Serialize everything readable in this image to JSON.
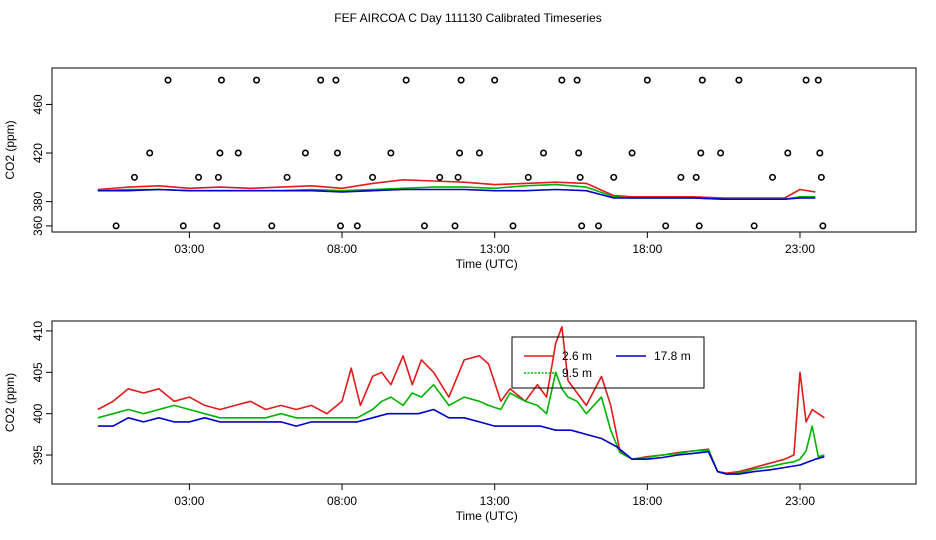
{
  "title": "FEF AIRCOA C  Day 111130  Calibrated Timeseries",
  "colors": {
    "red": "#e31a1c",
    "green": "#00b400",
    "blue": "#0000cc",
    "points": "#000000"
  },
  "chart_data": [
    {
      "type": "scatter+line",
      "name": "top-panel",
      "xlabel": "Time (UTC)",
      "ylabel": "CO2 (ppm)",
      "xlim": [
        -1.5,
        26.8
      ],
      "ylim": [
        355,
        490
      ],
      "xticks": [
        3,
        8,
        13,
        18,
        23
      ],
      "xtick_labels": [
        "03:00",
        "08:00",
        "13:00",
        "18:00",
        "23:00"
      ],
      "yticks": [
        360,
        380,
        420,
        460
      ],
      "ytick_labels": [
        "360",
        "380",
        "420",
        "460"
      ],
      "points": [
        {
          "x": 0.6,
          "y": 360
        },
        {
          "x": 1.2,
          "y": 400
        },
        {
          "x": 1.7,
          "y": 420
        },
        {
          "x": 2.3,
          "y": 480
        },
        {
          "x": 2.8,
          "y": 360
        },
        {
          "x": 3.3,
          "y": 400
        },
        {
          "x": 3.9,
          "y": 360
        },
        {
          "x": 3.95,
          "y": 400
        },
        {
          "x": 4.0,
          "y": 420
        },
        {
          "x": 4.05,
          "y": 480
        },
        {
          "x": 4.6,
          "y": 420
        },
        {
          "x": 5.2,
          "y": 480
        },
        {
          "x": 5.7,
          "y": 360
        },
        {
          "x": 6.2,
          "y": 400
        },
        {
          "x": 6.8,
          "y": 420
        },
        {
          "x": 7.3,
          "y": 480
        },
        {
          "x": 7.8,
          "y": 480
        },
        {
          "x": 7.85,
          "y": 420
        },
        {
          "x": 7.9,
          "y": 400
        },
        {
          "x": 7.95,
          "y": 360
        },
        {
          "x": 8.5,
          "y": 360
        },
        {
          "x": 9.0,
          "y": 400
        },
        {
          "x": 9.6,
          "y": 420
        },
        {
          "x": 10.1,
          "y": 480
        },
        {
          "x": 10.7,
          "y": 360
        },
        {
          "x": 11.2,
          "y": 400
        },
        {
          "x": 11.7,
          "y": 360
        },
        {
          "x": 11.8,
          "y": 400
        },
        {
          "x": 11.85,
          "y": 420
        },
        {
          "x": 11.9,
          "y": 480
        },
        {
          "x": 12.5,
          "y": 420
        },
        {
          "x": 13.0,
          "y": 480
        },
        {
          "x": 13.6,
          "y": 360
        },
        {
          "x": 14.1,
          "y": 400
        },
        {
          "x": 14.6,
          "y": 420
        },
        {
          "x": 15.2,
          "y": 480
        },
        {
          "x": 15.7,
          "y": 480
        },
        {
          "x": 15.75,
          "y": 420
        },
        {
          "x": 15.8,
          "y": 400
        },
        {
          "x": 15.85,
          "y": 360
        },
        {
          "x": 16.4,
          "y": 360
        },
        {
          "x": 16.9,
          "y": 400
        },
        {
          "x": 17.5,
          "y": 420
        },
        {
          "x": 18.0,
          "y": 480
        },
        {
          "x": 18.6,
          "y": 360
        },
        {
          "x": 19.1,
          "y": 400
        },
        {
          "x": 19.6,
          "y": 400
        },
        {
          "x": 19.7,
          "y": 360
        },
        {
          "x": 19.75,
          "y": 420
        },
        {
          "x": 19.8,
          "y": 480
        },
        {
          "x": 20.4,
          "y": 420
        },
        {
          "x": 21.0,
          "y": 480
        },
        {
          "x": 21.5,
          "y": 360
        },
        {
          "x": 22.1,
          "y": 400
        },
        {
          "x": 22.6,
          "y": 420
        },
        {
          "x": 23.2,
          "y": 480
        },
        {
          "x": 23.6,
          "y": 480
        },
        {
          "x": 23.65,
          "y": 420
        },
        {
          "x": 23.7,
          "y": 400
        },
        {
          "x": 23.75,
          "y": 360
        }
      ],
      "series": [
        {
          "name": "2.6 m",
          "color": "#e31a1c",
          "x": [
            0.0,
            1.0,
            2.0,
            3.0,
            4.0,
            5.0,
            6.0,
            7.0,
            8.0,
            9.0,
            10.0,
            11.0,
            12.0,
            13.0,
            14.0,
            15.0,
            16.0,
            16.9,
            17.5,
            18.5,
            19.5,
            20.5,
            21.5,
            22.5,
            23.0,
            23.5
          ],
          "y": [
            390,
            392,
            393,
            391,
            392,
            391,
            392,
            393,
            391,
            395,
            398,
            397,
            396,
            394,
            395,
            396,
            395,
            385,
            384,
            384,
            384,
            383,
            383,
            383,
            390,
            388
          ]
        },
        {
          "name": "9.5 m",
          "color": "#00b400",
          "x": [
            0.0,
            1.0,
            2.0,
            3.0,
            4.0,
            5.0,
            6.0,
            7.0,
            8.0,
            9.0,
            10.0,
            11.0,
            12.0,
            13.0,
            14.0,
            15.0,
            16.0,
            16.9,
            17.5,
            18.5,
            19.5,
            20.5,
            21.5,
            22.5,
            23.0,
            23.5
          ],
          "y": [
            389,
            390,
            390,
            389,
            389,
            389,
            389,
            390,
            389,
            390,
            391,
            392,
            392,
            391,
            393,
            394,
            392,
            384,
            383,
            383,
            383,
            382,
            382,
            382,
            384,
            384
          ]
        },
        {
          "name": "17.8 m",
          "color": "#0000cc",
          "x": [
            0.0,
            1.0,
            2.0,
            3.0,
            4.0,
            5.0,
            6.0,
            7.0,
            8.0,
            9.0,
            10.0,
            11.0,
            12.0,
            13.0,
            14.0,
            15.0,
            16.0,
            16.9,
            17.5,
            18.5,
            19.5,
            20.5,
            21.5,
            22.5,
            23.0,
            23.5
          ],
          "y": [
            389,
            389,
            390,
            389,
            389,
            389,
            389,
            389,
            388,
            389,
            390,
            390,
            390,
            389,
            389,
            390,
            389,
            383,
            383,
            383,
            383,
            382,
            382,
            382,
            383,
            383
          ]
        }
      ]
    },
    {
      "type": "line",
      "name": "bottom-panel",
      "xlabel": "Time (UTC)",
      "ylabel": "CO2 (ppm)",
      "xlim": [
        -1.5,
        26.8
      ],
      "ylim": [
        391.5,
        411.2
      ],
      "xticks": [
        3,
        8,
        13,
        18,
        23
      ],
      "xtick_labels": [
        "03:00",
        "08:00",
        "13:00",
        "18:00",
        "23:00"
      ],
      "yticks": [
        395,
        400,
        405,
        410
      ],
      "ytick_labels": [
        "395",
        "400",
        "405",
        "410"
      ],
      "legend": [
        {
          "label": "2.6 m",
          "color": "#e31a1c"
        },
        {
          "label": "17.8 m",
          "color": "#0000cc"
        },
        {
          "label": "9.5 m",
          "color": "#00b400"
        }
      ],
      "series": [
        {
          "name": "2.6 m",
          "color": "#e31a1c",
          "x": [
            0.0,
            0.5,
            1.0,
            1.5,
            2.0,
            2.5,
            3.0,
            3.5,
            4.0,
            4.5,
            5.0,
            5.5,
            6.0,
            6.5,
            7.0,
            7.5,
            8.0,
            8.3,
            8.6,
            9.0,
            9.3,
            9.6,
            10.0,
            10.3,
            10.6,
            11.0,
            11.5,
            12.0,
            12.5,
            12.8,
            13.2,
            13.5,
            14.0,
            14.4,
            14.7,
            15.0,
            15.2,
            15.4,
            15.7,
            16.0,
            16.5,
            16.8,
            17.1,
            17.5,
            18.0,
            18.5,
            19.0,
            19.5,
            20.0,
            20.3,
            20.6,
            21.0,
            21.5,
            22.0,
            22.5,
            22.8,
            23.0,
            23.2,
            23.4,
            23.6,
            23.8
          ],
          "y": [
            400.5,
            401.5,
            403.0,
            402.5,
            403.0,
            401.5,
            402.0,
            401.0,
            400.5,
            401.0,
            401.5,
            400.5,
            401.0,
            400.5,
            401.0,
            400.0,
            401.5,
            405.5,
            401.0,
            404.5,
            405.0,
            403.5,
            407.0,
            403.5,
            406.5,
            405.0,
            402.0,
            406.5,
            407.0,
            406.0,
            401.5,
            403.0,
            401.5,
            403.5,
            402.0,
            408.5,
            410.5,
            404.0,
            402.5,
            401.0,
            404.5,
            401.0,
            395.5,
            394.5,
            394.8,
            395.0,
            395.3,
            395.5,
            395.7,
            393.0,
            392.8,
            393.0,
            393.5,
            394.0,
            394.5,
            395.0,
            405.0,
            399.0,
            400.5,
            400.0,
            399.5
          ]
        },
        {
          "name": "9.5 m",
          "color": "#00b400",
          "x": [
            0.0,
            0.5,
            1.0,
            1.5,
            2.0,
            2.5,
            3.0,
            3.5,
            4.0,
            4.5,
            5.0,
            5.5,
            6.0,
            6.5,
            7.0,
            7.5,
            8.0,
            8.5,
            9.0,
            9.3,
            9.6,
            10.0,
            10.3,
            10.6,
            11.0,
            11.5,
            12.0,
            12.5,
            12.8,
            13.2,
            13.5,
            14.0,
            14.4,
            14.7,
            15.0,
            15.2,
            15.4,
            15.7,
            16.0,
            16.5,
            16.8,
            17.1,
            17.5,
            18.0,
            18.5,
            19.0,
            19.5,
            20.0,
            20.3,
            20.6,
            21.0,
            21.5,
            22.0,
            22.5,
            22.8,
            23.0,
            23.2,
            23.4,
            23.6,
            23.8
          ],
          "y": [
            399.5,
            400.0,
            400.5,
            400.0,
            400.5,
            401.0,
            400.5,
            400.0,
            399.5,
            399.5,
            399.5,
            399.5,
            400.0,
            399.5,
            399.5,
            399.5,
            399.5,
            399.5,
            400.5,
            401.5,
            402.0,
            401.0,
            402.5,
            402.0,
            403.5,
            401.0,
            402.0,
            401.5,
            401.0,
            400.5,
            402.5,
            401.5,
            401.0,
            400.0,
            405.0,
            403.0,
            402.0,
            401.5,
            400.0,
            402.0,
            398.0,
            395.3,
            394.5,
            394.7,
            395.0,
            395.2,
            395.5,
            395.6,
            393.0,
            392.7,
            392.8,
            393.3,
            393.6,
            394.0,
            394.2,
            394.5,
            395.5,
            398.5,
            394.8,
            395.0
          ]
        },
        {
          "name": "17.8 m",
          "color": "#0000cc",
          "x": [
            0.0,
            0.5,
            1.0,
            1.5,
            2.0,
            2.5,
            3.0,
            3.5,
            4.0,
            4.5,
            5.0,
            5.5,
            6.0,
            6.5,
            7.0,
            7.5,
            8.0,
            8.5,
            9.0,
            9.5,
            10.0,
            10.5,
            11.0,
            11.5,
            12.0,
            12.5,
            13.0,
            13.5,
            14.0,
            14.5,
            15.0,
            15.5,
            16.0,
            16.5,
            17.0,
            17.5,
            18.0,
            18.5,
            19.0,
            19.5,
            20.0,
            20.3,
            20.6,
            21.0,
            21.5,
            22.0,
            22.5,
            23.0,
            23.5,
            23.8
          ],
          "y": [
            398.5,
            398.5,
            399.5,
            399.0,
            399.5,
            399.0,
            399.0,
            399.5,
            399.0,
            399.0,
            399.0,
            399.0,
            399.0,
            398.5,
            399.0,
            399.0,
            399.0,
            399.0,
            399.5,
            400.0,
            400.0,
            400.0,
            400.5,
            399.5,
            399.5,
            399.0,
            398.5,
            398.5,
            398.5,
            398.5,
            398.0,
            398.0,
            397.5,
            397.0,
            396.0,
            394.5,
            394.5,
            394.7,
            395.0,
            395.2,
            395.4,
            393.0,
            392.7,
            392.7,
            393.0,
            393.2,
            393.5,
            393.8,
            394.5,
            394.8
          ]
        }
      ]
    }
  ]
}
